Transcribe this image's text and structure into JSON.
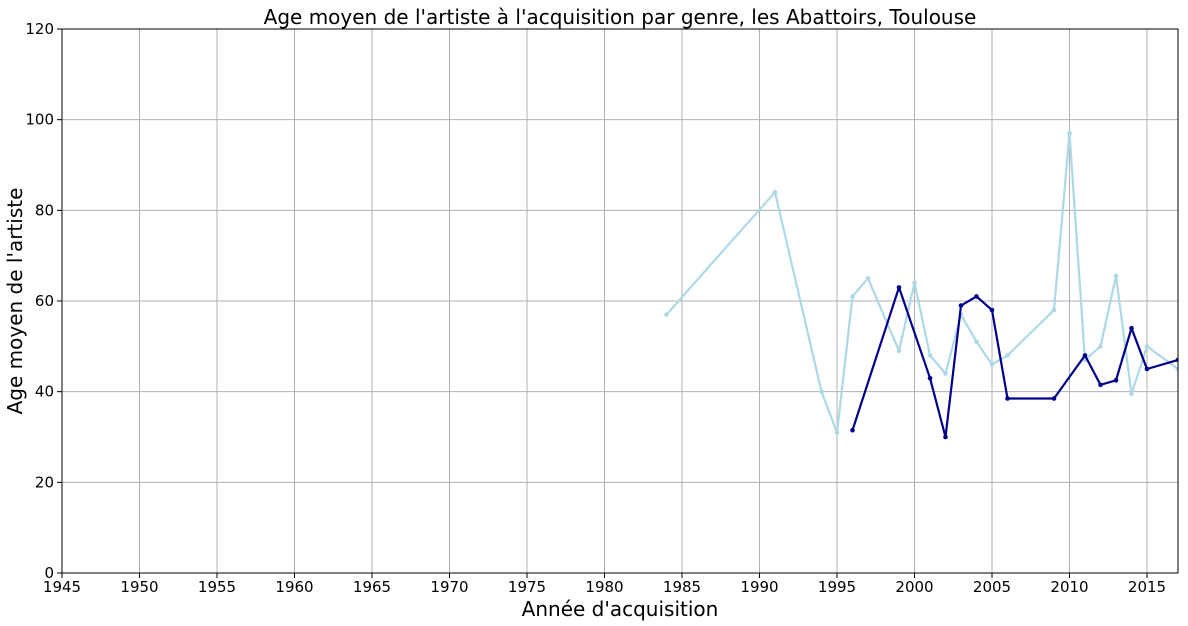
{
  "chart_data": {
    "type": "line",
    "title": "Age moyen de l'artiste à l'acquisition par genre, les Abattoirs, Toulouse",
    "xlabel": "Année d'acquisition",
    "ylabel": "Age moyen de l'artiste",
    "xlim": [
      1945,
      2017
    ],
    "ylim": [
      0,
      120
    ],
    "xticks": [
      1945,
      1950,
      1955,
      1960,
      1965,
      1970,
      1975,
      1980,
      1985,
      1990,
      1995,
      2000,
      2005,
      2010,
      2015
    ],
    "yticks": [
      0,
      20,
      40,
      60,
      80,
      100,
      120
    ],
    "grid": true,
    "series": [
      {
        "color": "#add8e6",
        "x": [
          1984,
          1991,
          1994,
          1995,
          1996,
          1997,
          1999,
          2000,
          2001,
          2002,
          2003,
          2004,
          2005,
          2006,
          2009,
          2010,
          2011,
          2012,
          2013,
          2014,
          2015,
          2017
        ],
        "y": [
          57,
          84,
          40,
          31,
          61,
          65,
          49,
          64,
          48,
          44,
          57,
          51,
          46,
          48,
          58,
          97,
          47,
          50,
          65.5,
          39.5,
          50,
          45
        ]
      },
      {
        "color": "#00008b",
        "x": [
          1996,
          1999,
          2001,
          2002,
          2003,
          2004,
          2005,
          2006,
          2009,
          2011,
          2012,
          2013,
          2014,
          2015,
          2017
        ],
        "y": [
          31.5,
          63,
          43,
          30,
          59,
          61,
          58,
          38.5,
          38.5,
          48,
          41.5,
          42.5,
          54,
          45,
          47
        ]
      }
    ]
  }
}
